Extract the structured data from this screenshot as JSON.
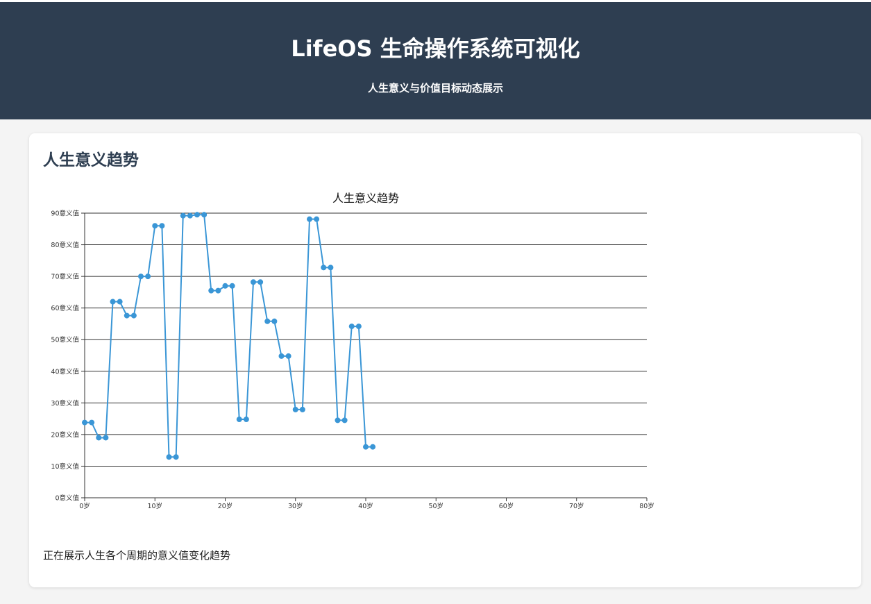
{
  "header": {
    "title": "LifeOS 生命操作系统可视化",
    "subtitle": "人生意义与价值目标动态展示"
  },
  "card": {
    "title": "人生意义趋势",
    "footer": "正在展示人生各个周期的意义值变化趋势"
  },
  "colors": {
    "header_bg": "#2e3e51",
    "line": "#3a96d6",
    "grid": "#333333"
  },
  "chart_data": {
    "type": "line",
    "title": "人生意义趋势",
    "xlabel": "",
    "ylabel": "",
    "x_unit": "岁",
    "y_unit": "意义值",
    "xlim": [
      0,
      80
    ],
    "ylim": [
      0,
      90
    ],
    "x_ticks": [
      0,
      10,
      20,
      30,
      40,
      50,
      60,
      70,
      80
    ],
    "y_ticks": [
      0,
      10,
      20,
      30,
      40,
      50,
      60,
      70,
      80,
      90
    ],
    "grid": true,
    "series": [
      {
        "x": [
          0,
          1,
          2,
          3,
          4,
          5,
          6,
          7,
          8,
          9,
          10,
          11,
          12,
          13,
          14,
          15,
          16,
          17,
          18,
          19,
          20,
          21,
          22,
          23,
          24,
          25,
          26,
          27,
          28,
          29,
          30,
          31,
          32,
          33,
          34,
          35,
          36,
          37,
          38,
          39,
          40,
          41
        ],
        "values": [
          23.8,
          23.8,
          19,
          19,
          62,
          62,
          57.6,
          57.6,
          70,
          70,
          86,
          86,
          12.9,
          12.9,
          89.2,
          89.2,
          89.5,
          89.5,
          65.5,
          65.5,
          67,
          67,
          24.8,
          24.8,
          68.2,
          68.2,
          55.8,
          55.8,
          44.8,
          44.8,
          27.9,
          27.9,
          88.1,
          88.1,
          72.8,
          72.8,
          24.5,
          24.5,
          54.2,
          54.2,
          16.1,
          16.1
        ]
      }
    ]
  }
}
